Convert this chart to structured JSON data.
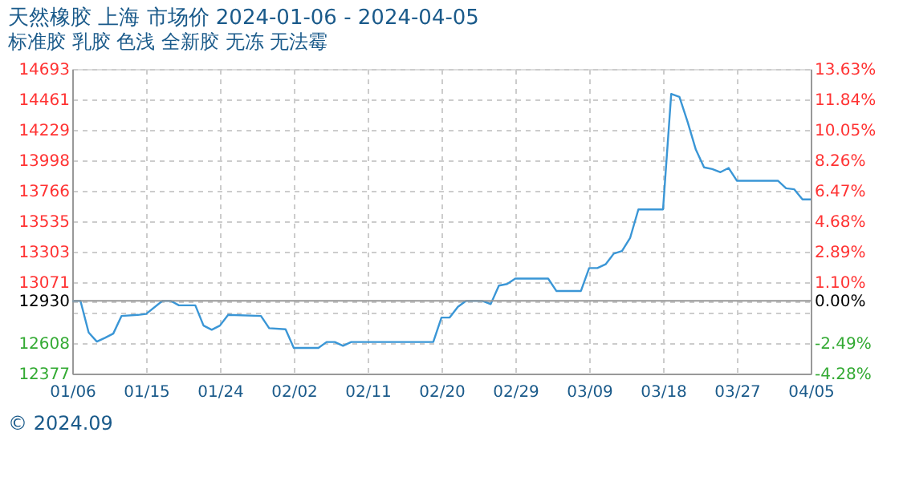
{
  "chart_data": {
    "type": "line",
    "title": "天然橡胶 上海 市场价 2024-01-06 - 2024-04-05",
    "subtitle": "标准胶 乳胶 色浅 全新胶 无冻 无法霉",
    "annotations": [
      "© 2024.09"
    ],
    "x": [
      "2024-01-06",
      "2024-01-07",
      "2024-01-08",
      "2024-01-09",
      "2024-01-10",
      "2024-01-11",
      "2024-01-12",
      "2024-01-14",
      "2024-01-15",
      "2024-01-17",
      "2024-01-18",
      "2024-01-19",
      "2024-01-21",
      "2024-01-22",
      "2024-01-23",
      "2024-01-24",
      "2024-01-25",
      "2024-01-29",
      "2024-01-30",
      "2024-02-01",
      "2024-02-02",
      "2024-02-05",
      "2024-02-06",
      "2024-02-07",
      "2024-02-08",
      "2024-02-09",
      "2024-02-19",
      "2024-02-20",
      "2024-02-21",
      "2024-02-22",
      "2024-02-23",
      "2024-02-25",
      "2024-02-26",
      "2024-02-27",
      "2024-02-28",
      "2024-02-29",
      "2024-03-04",
      "2024-03-05",
      "2024-03-08",
      "2024-03-09",
      "2024-03-10",
      "2024-03-11",
      "2024-03-12",
      "2024-03-13",
      "2024-03-14",
      "2024-03-15",
      "2024-03-18",
      "2024-03-19",
      "2024-03-20",
      "2024-03-21",
      "2024-03-22",
      "2024-03-23",
      "2024-03-24",
      "2024-03-25",
      "2024-03-26",
      "2024-03-27",
      "2024-04-01",
      "2024-04-02",
      "2024-04-03",
      "2024-04-04",
      "2024-04-05"
    ],
    "series": [
      {
        "color": "#3a96d6",
        "values": [
          12930,
          12930,
          12689,
          12620,
          12649,
          12681,
          12815,
          12823,
          12830,
          12930,
          12930,
          12896,
          12896,
          12742,
          12710,
          12742,
          12823,
          12815,
          12722,
          12714,
          12572,
          12572,
          12617,
          12617,
          12588,
          12617,
          12617,
          12803,
          12803,
          12884,
          12930,
          12930,
          12905,
          13046,
          13058,
          13099,
          13099,
          13005,
          13005,
          13179,
          13179,
          13208,
          13289,
          13309,
          13410,
          13625,
          13625,
          14503,
          14480,
          14290,
          14080,
          13945,
          13932,
          13908,
          13940,
          13843,
          13843,
          13786,
          13778,
          13701,
          13701
        ]
      }
    ],
    "xlim": [
      "2024-01-06",
      "2024-04-05"
    ],
    "xticks": [
      {
        "value": "2024-01-06",
        "label": "01/06"
      },
      {
        "value": "2024-01-15",
        "label": "01/15"
      },
      {
        "value": "2024-01-24",
        "label": "01/24"
      },
      {
        "value": "2024-02-02",
        "label": "02/02"
      },
      {
        "value": "2024-02-11",
        "label": "02/11"
      },
      {
        "value": "2024-02-20",
        "label": "02/20"
      },
      {
        "value": "2024-02-29",
        "label": "02/29"
      },
      {
        "value": "2024-03-09",
        "label": "03/09"
      },
      {
        "value": "2024-03-18",
        "label": "03/18"
      },
      {
        "value": "2024-03-27",
        "label": "03/27"
      },
      {
        "value": "2024-04-05",
        "label": "04/05"
      }
    ],
    "ylim": [
      12377,
      14693
    ],
    "yticks": [
      12377,
      12608,
      {
        "value": 12839,
        "label": null
      },
      12930,
      13071,
      13303,
      13535,
      13766,
      13998,
      14229,
      14461,
      14693
    ],
    "y2lim": [
      -4.28,
      13.63
    ],
    "y2ticks": [
      {
        "value": -4.28,
        "label": "-4.28%"
      },
      {
        "value": -2.49,
        "label": "-2.49%"
      },
      {
        "value": -0.7,
        "label": null
      },
      {
        "value": 0,
        "label": "0.00%"
      },
      {
        "value": 1.1,
        "label": "1.10%"
      },
      {
        "value": 2.89,
        "label": "2.89%"
      },
      {
        "value": 4.68,
        "label": "4.68%"
      },
      {
        "value": 6.47,
        "label": "6.47%"
      },
      {
        "value": 8.26,
        "label": "8.26%"
      },
      {
        "value": 10.05,
        "label": "10.05%"
      },
      {
        "value": 11.84,
        "label": "11.84%"
      },
      {
        "value": 13.63,
        "label": "13.63%"
      }
    ],
    "ref_lines": [
      {
        "axis": "y2",
        "value": 0,
        "color": "#999999"
      }
    ],
    "grid": true,
    "legend": false,
    "marker": "none",
    "line_style": "solid"
  }
}
